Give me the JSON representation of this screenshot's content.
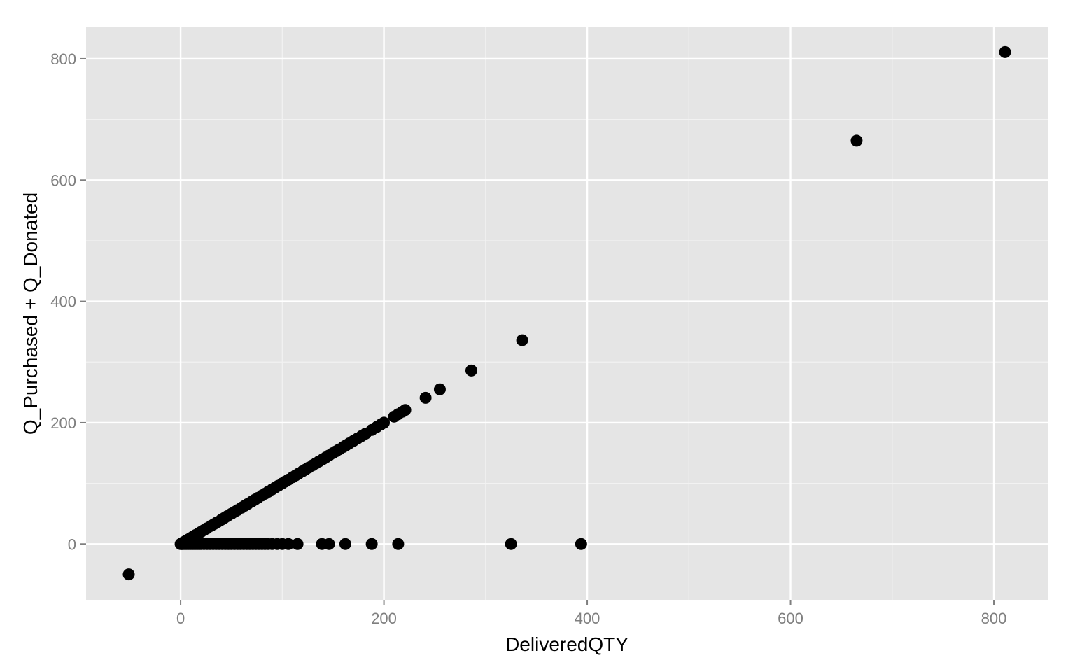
{
  "chart_data": {
    "type": "scatter",
    "title": "",
    "xlabel": "DeliveredQTY",
    "ylabel": "Q_Purchased + Q_Donated",
    "xlim": [
      -93,
      853
    ],
    "ylim": [
      -92,
      853
    ],
    "x_ticks": [
      0,
      200,
      400,
      600,
      800
    ],
    "y_ticks": [
      0,
      200,
      400,
      600,
      800
    ],
    "x_tick_labels": [
      "0",
      "200",
      "400",
      "600",
      "800"
    ],
    "y_tick_labels": [
      "0",
      "200",
      "400",
      "600",
      "800"
    ],
    "grid": true,
    "legend": "none",
    "colors": {
      "panel": "#e5e5e5",
      "grid_major": "#ffffff",
      "grid_minor": "#f2f2f2",
      "point": "#000000",
      "tick_label": "#7f7f7f",
      "tick_mark": "#7f7f7f",
      "axis_title": "#000000",
      "background": "#ffffff"
    },
    "series": [
      {
        "points": [
          [
            -51,
            -50
          ],
          [
            0,
            0
          ],
          [
            1,
            1
          ],
          [
            2,
            2
          ],
          [
            3,
            3
          ],
          [
            4,
            4
          ],
          [
            5,
            5
          ],
          [
            6,
            6
          ],
          [
            8,
            8
          ],
          [
            10,
            10
          ],
          [
            12,
            12
          ],
          [
            15,
            15
          ],
          [
            18,
            18
          ],
          [
            20,
            20
          ],
          [
            23,
            23
          ],
          [
            26,
            26
          ],
          [
            30,
            30
          ],
          [
            33,
            33
          ],
          [
            36,
            36
          ],
          [
            40,
            40
          ],
          [
            43,
            43
          ],
          [
            46,
            46
          ],
          [
            50,
            50
          ],
          [
            53,
            53
          ],
          [
            56,
            56
          ],
          [
            60,
            60
          ],
          [
            63,
            63
          ],
          [
            66,
            66
          ],
          [
            70,
            70
          ],
          [
            73,
            73
          ],
          [
            76,
            76
          ],
          [
            80,
            80
          ],
          [
            83,
            83
          ],
          [
            86,
            86
          ],
          [
            90,
            90
          ],
          [
            93,
            93
          ],
          [
            96,
            96
          ],
          [
            100,
            100
          ],
          [
            103,
            103
          ],
          [
            106,
            106
          ],
          [
            110,
            110
          ],
          [
            113,
            113
          ],
          [
            116,
            116
          ],
          [
            120,
            120
          ],
          [
            123,
            123
          ],
          [
            126,
            126
          ],
          [
            130,
            130
          ],
          [
            133,
            133
          ],
          [
            136,
            136
          ],
          [
            140,
            140
          ],
          [
            143,
            143
          ],
          [
            146,
            146
          ],
          [
            150,
            150
          ],
          [
            153,
            153
          ],
          [
            156,
            156
          ],
          [
            160,
            160
          ],
          [
            163,
            163
          ],
          [
            166,
            166
          ],
          [
            170,
            170
          ],
          [
            174,
            174
          ],
          [
            178,
            178
          ],
          [
            182,
            182
          ],
          [
            188,
            188
          ],
          [
            193,
            193
          ],
          [
            197,
            197
          ],
          [
            200,
            200
          ],
          [
            210,
            210
          ],
          [
            214,
            214
          ],
          [
            218,
            218
          ],
          [
            221,
            221
          ],
          [
            241,
            241
          ],
          [
            255,
            255
          ],
          [
            286,
            286
          ],
          [
            336,
            336
          ],
          [
            665,
            665
          ],
          [
            811,
            811
          ],
          [
            1,
            0
          ],
          [
            2,
            0
          ],
          [
            4,
            0
          ],
          [
            6,
            0
          ],
          [
            8,
            0
          ],
          [
            10,
            0
          ],
          [
            12,
            0
          ],
          [
            14,
            0
          ],
          [
            16,
            0
          ],
          [
            18,
            0
          ],
          [
            20,
            0
          ],
          [
            23,
            0
          ],
          [
            26,
            0
          ],
          [
            29,
            0
          ],
          [
            32,
            0
          ],
          [
            35,
            0
          ],
          [
            38,
            0
          ],
          [
            41,
            0
          ],
          [
            44,
            0
          ],
          [
            47,
            0
          ],
          [
            50,
            0
          ],
          [
            53,
            0
          ],
          [
            56,
            0
          ],
          [
            59,
            0
          ],
          [
            62,
            0
          ],
          [
            65,
            0
          ],
          [
            68,
            0
          ],
          [
            71,
            0
          ],
          [
            74,
            0
          ],
          [
            77,
            0
          ],
          [
            80,
            0
          ],
          [
            83,
            0
          ],
          [
            86,
            0
          ],
          [
            90,
            0
          ],
          [
            95,
            0
          ],
          [
            100,
            0
          ],
          [
            106,
            0
          ],
          [
            115,
            0
          ],
          [
            139,
            0
          ],
          [
            146,
            0
          ],
          [
            162,
            0
          ],
          [
            188,
            0
          ],
          [
            214,
            0
          ],
          [
            325,
            0
          ],
          [
            394,
            0
          ]
        ]
      }
    ]
  }
}
